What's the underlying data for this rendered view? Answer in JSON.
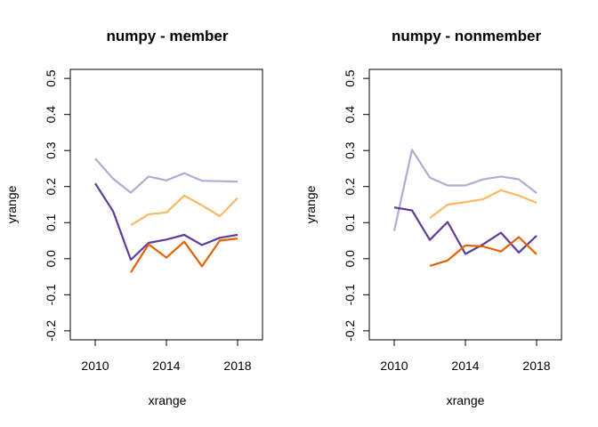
{
  "chart_data": [
    {
      "type": "line",
      "title": "numpy - member",
      "xlabel": "xrange",
      "ylabel": "yrange",
      "xlim": [
        2008.6,
        2019.4
      ],
      "ylim": [
        -0.225,
        0.525
      ],
      "xticks": [
        2010,
        2014,
        2018
      ],
      "yticks": [
        -0.2,
        -0.1,
        0.0,
        0.1,
        0.2,
        0.3,
        0.4,
        0.5
      ],
      "ytick_labels": [
        "-0.2",
        "-0.1",
        "0.0",
        "0.1",
        "0.2",
        "0.3",
        "0.4",
        "0.5"
      ],
      "xtick_labels": [
        "2010",
        "2014",
        "2018"
      ],
      "grid": false,
      "series": [
        {
          "color": "#b2abd2",
          "x": [
            2010,
            2011,
            2012,
            2013,
            2014,
            2015,
            2016,
            2017,
            2018
          ],
          "y": [
            0.278,
            0.222,
            0.183,
            0.228,
            0.217,
            0.237,
            0.216,
            0.215,
            0.214
          ]
        },
        {
          "color": "#fdb863",
          "x": [
            2012,
            2013,
            2014,
            2015,
            2016,
            2017,
            2018
          ],
          "y": [
            0.093,
            0.123,
            0.128,
            0.175,
            0.148,
            0.118,
            0.168
          ]
        },
        {
          "color": "#5e3c99",
          "x": [
            2010,
            2011,
            2012,
            2013,
            2014,
            2015,
            2016,
            2017,
            2018
          ],
          "y": [
            0.209,
            0.132,
            -0.003,
            0.044,
            0.053,
            0.066,
            0.038,
            0.058,
            0.066
          ]
        },
        {
          "color": "#e66101",
          "x": [
            2012,
            2013,
            2014,
            2015,
            2016,
            2017,
            2018
          ],
          "y": [
            -0.038,
            0.04,
            0.003,
            0.047,
            -0.021,
            0.05,
            0.056
          ]
        }
      ]
    },
    {
      "type": "line",
      "title": "numpy - nonmember",
      "xlabel": "xrange",
      "ylabel": "yrange",
      "xlim": [
        2008.6,
        2019.4
      ],
      "ylim": [
        -0.225,
        0.525
      ],
      "xticks": [
        2010,
        2014,
        2018
      ],
      "yticks": [
        -0.2,
        -0.1,
        0.0,
        0.1,
        0.2,
        0.3,
        0.4,
        0.5
      ],
      "ytick_labels": [
        "-0.2",
        "-0.1",
        "0.0",
        "0.1",
        "0.2",
        "0.3",
        "0.4",
        "0.5"
      ],
      "xtick_labels": [
        "2010",
        "2014",
        "2018"
      ],
      "grid": false,
      "series": [
        {
          "color": "#b2abd2",
          "x": [
            2010,
            2011,
            2012,
            2013,
            2014,
            2015,
            2016,
            2017,
            2018
          ],
          "y": [
            0.077,
            0.302,
            0.225,
            0.203,
            0.203,
            0.22,
            0.228,
            0.22,
            0.182
          ]
        },
        {
          "color": "#fdb863",
          "x": [
            2012,
            2013,
            2014,
            2015,
            2016,
            2017,
            2018
          ],
          "y": [
            0.113,
            0.15,
            0.157,
            0.165,
            0.19,
            0.175,
            0.155
          ]
        },
        {
          "color": "#5e3c99",
          "x": [
            2010,
            2011,
            2012,
            2013,
            2014,
            2015,
            2016,
            2017,
            2018
          ],
          "y": [
            0.142,
            0.134,
            0.052,
            0.102,
            0.013,
            0.04,
            0.072,
            0.017,
            0.064
          ]
        },
        {
          "color": "#e66101",
          "x": [
            2012,
            2013,
            2014,
            2015,
            2016,
            2017,
            2018
          ],
          "y": [
            -0.02,
            -0.005,
            0.037,
            0.034,
            0.02,
            0.06,
            0.012
          ]
        }
      ]
    }
  ]
}
